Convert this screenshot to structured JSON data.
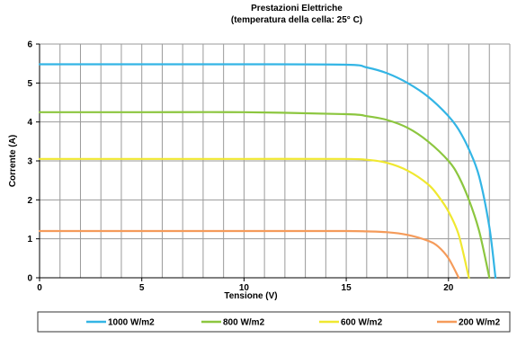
{
  "chart_data": {
    "type": "line",
    "title": "Prestazioni Elettriche",
    "subtitle": "(temperatura della cella: 25° C)",
    "xlabel": "Tensione (V)",
    "ylabel": "Corrente (A)",
    "xlim": [
      0,
      23
    ],
    "ylim": [
      0,
      6
    ],
    "x_ticks": [
      0,
      5,
      10,
      15,
      20
    ],
    "y_ticks": [
      0,
      1,
      2,
      3,
      4,
      5,
      6
    ],
    "x_tick_labels": [
      "0",
      "5",
      "10",
      "15",
      "20"
    ],
    "y_tick_labels": [
      "0",
      "1",
      "2",
      "3",
      "4",
      "5",
      "6"
    ],
    "grid": true,
    "legend_position": "bottom",
    "series": [
      {
        "name": "1000 W/m2",
        "color": "#33b5e5",
        "points": [
          [
            0,
            5.48
          ],
          [
            5,
            5.48
          ],
          [
            10,
            5.48
          ],
          [
            15,
            5.47
          ],
          [
            16,
            5.4
          ],
          [
            17,
            5.25
          ],
          [
            18,
            5.0
          ],
          [
            19,
            4.65
          ],
          [
            20,
            4.15
          ],
          [
            20.5,
            3.8
          ],
          [
            21,
            3.3
          ],
          [
            21.5,
            2.6
          ],
          [
            22,
            1.3
          ],
          [
            22.3,
            0.0
          ]
        ]
      },
      {
        "name": "800 W/m2",
        "color": "#8cc63f",
        "points": [
          [
            0,
            4.25
          ],
          [
            5,
            4.25
          ],
          [
            10,
            4.25
          ],
          [
            15,
            4.2
          ],
          [
            16,
            4.15
          ],
          [
            17,
            4.05
          ],
          [
            18,
            3.85
          ],
          [
            19,
            3.5
          ],
          [
            20,
            3.0
          ],
          [
            20.5,
            2.6
          ],
          [
            21,
            2.0
          ],
          [
            21.5,
            1.2
          ],
          [
            22,
            0.0
          ]
        ]
      },
      {
        "name": "600 W/m2",
        "color": "#f0e830",
        "points": [
          [
            0,
            3.05
          ],
          [
            5,
            3.05
          ],
          [
            10,
            3.05
          ],
          [
            15,
            3.05
          ],
          [
            16,
            3.03
          ],
          [
            17,
            2.95
          ],
          [
            18,
            2.75
          ],
          [
            19,
            2.4
          ],
          [
            19.5,
            2.1
          ],
          [
            20,
            1.7
          ],
          [
            20.5,
            1.1
          ],
          [
            21,
            0.0
          ]
        ]
      },
      {
        "name": "200 W/m2",
        "color": "#f59b5a",
        "points": [
          [
            0,
            1.2
          ],
          [
            5,
            1.2
          ],
          [
            10,
            1.2
          ],
          [
            15,
            1.2
          ],
          [
            16,
            1.19
          ],
          [
            17,
            1.17
          ],
          [
            18,
            1.1
          ],
          [
            19,
            0.95
          ],
          [
            19.5,
            0.8
          ],
          [
            20,
            0.5
          ],
          [
            20.5,
            0.0
          ]
        ]
      }
    ]
  }
}
